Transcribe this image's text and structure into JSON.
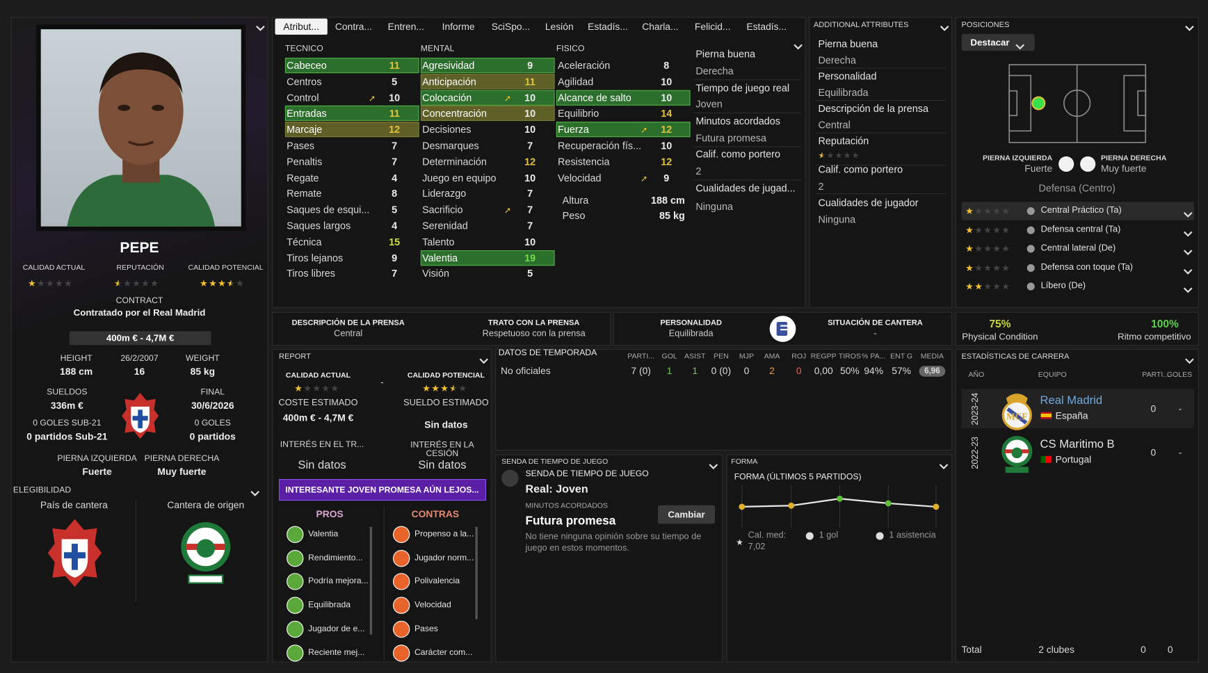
{
  "tabs": [
    "Atribut...",
    "Contra...",
    "Entren...",
    "Informe",
    "SciSpo...",
    "Lesión",
    "Estadís...",
    "Charla...",
    "Felicid...",
    "Estadís..."
  ],
  "profile": {
    "name": "PEPE",
    "ratings": [
      {
        "label": "CALIDAD ACTUAL",
        "stars": 1
      },
      {
        "label": "REPUTACIÓN",
        "stars": 0.5
      },
      {
        "label": "CALIDAD POTENCIAL",
        "stars": 3.5
      }
    ],
    "contract_label": "CONTRACT",
    "contract": "Contratado por el Real Madrid",
    "value": "400m € - 4,7M €",
    "facts": [
      {
        "label": "HEIGHT",
        "value": "188 cm"
      },
      {
        "label": "26/2/2007",
        "value": "16"
      },
      {
        "label": "WEIGHT",
        "value": "85 kg"
      },
      {
        "label": "SUELDOS",
        "value": "336m €"
      },
      {
        "label": "FINAL",
        "value": "30/6/2026"
      },
      {
        "label": "0 GOLES SUB-21",
        "value": "0 partidos Sub-21"
      },
      {
        "label": "0 GOLES",
        "value": "0 partidos"
      },
      {
        "label": "PIERNA IZQUIERDA",
        "value": "Fuerte"
      },
      {
        "label": "PIERNA DERECHA",
        "value": "Muy fuerte"
      }
    ],
    "eligibility": "ELEGIBILIDAD",
    "nation_label": "País de cantera",
    "origin_label": "Cantera de origen"
  },
  "attributes": {
    "columns": [
      {
        "title": "TECNICO",
        "rows": [
          {
            "name": "Cabeceo",
            "value": 11,
            "highlight": "green"
          },
          {
            "name": "Centros",
            "value": 5
          },
          {
            "name": "Control",
            "value": 10,
            "trend": "up"
          },
          {
            "name": "Entradas",
            "value": 11,
            "highlight": "green"
          },
          {
            "name": "Marcaje",
            "value": 12,
            "highlight": "olive"
          },
          {
            "name": "Pases",
            "value": 7
          },
          {
            "name": "Penaltis",
            "value": 7
          },
          {
            "name": "Regate",
            "value": 4
          },
          {
            "name": "Remate",
            "value": 8
          },
          {
            "name": "Saques de esqui...",
            "value": 5
          },
          {
            "name": "Saques largos",
            "value": 4
          },
          {
            "name": "Técnica",
            "value": 15
          },
          {
            "name": "Tiros lejanos",
            "value": 9
          },
          {
            "name": "Tiros libres",
            "value": 7
          }
        ]
      },
      {
        "title": "MENTAL",
        "rows": [
          {
            "name": "Agresividad",
            "value": 9,
            "highlight": "green"
          },
          {
            "name": "Anticipación",
            "value": 11,
            "highlight": "olive"
          },
          {
            "name": "Colocación",
            "value": 10,
            "highlight": "green",
            "trend": "up"
          },
          {
            "name": "Concentración",
            "value": 10,
            "highlight": "olive"
          },
          {
            "name": "Decisiones",
            "value": 10
          },
          {
            "name": "Desmarques",
            "value": 7
          },
          {
            "name": "Determinación",
            "value": 12
          },
          {
            "name": "Juego en equipo",
            "value": 10
          },
          {
            "name": "Liderazgo",
            "value": 7
          },
          {
            "name": "Sacrificio",
            "value": 7,
            "trend": "up"
          },
          {
            "name": "Serenidad",
            "value": 7
          },
          {
            "name": "Talento",
            "value": 10
          },
          {
            "name": "Valentia",
            "value": 19,
            "highlight": "green"
          },
          {
            "name": "Visión",
            "value": 5
          }
        ]
      },
      {
        "title": "FISICO",
        "rows": [
          {
            "name": "Aceleración",
            "value": 8
          },
          {
            "name": "Agilidad",
            "value": 10
          },
          {
            "name": "Alcance de salto",
            "value": 10,
            "highlight": "green"
          },
          {
            "name": "Equilibrio",
            "value": 14
          },
          {
            "name": "Fuerza",
            "value": 12,
            "highlight": "green",
            "trend": "up"
          },
          {
            "name": "Recuperación fís...",
            "value": 10
          },
          {
            "name": "Resistencia",
            "value": 12
          },
          {
            "name": "Velocidad",
            "value": 9,
            "trend": "up"
          }
        ]
      }
    ],
    "physical": [
      {
        "label": "Altura",
        "value": "188 cm"
      },
      {
        "label": "Peso",
        "value": "85 kg"
      }
    ],
    "summary": [
      "Pierna buena",
      "Derecha",
      "Tiempo de juego real",
      "Joven",
      "Minutos acordados",
      "Futura promesa",
      "Calif. como portero",
      "2",
      "Cualidades de jugad...",
      "Ninguna"
    ]
  },
  "additional": {
    "title": "ADDITIONAL ATTRIBUTES",
    "items": [
      {
        "label": "Pierna buena",
        "value": "Derecha"
      },
      {
        "label": "Personalidad",
        "value": "Equilibrada"
      },
      {
        "label": "Descripción de la prensa",
        "value": "Central"
      },
      {
        "label": "Reputación",
        "stars": 0.5
      },
      {
        "label": "Calif. como portero",
        "value": "2"
      },
      {
        "label": "Cualidades de jugador",
        "value": "Ninguna"
      }
    ]
  },
  "positions": {
    "title": "POSICIONES",
    "button": "Destacar",
    "left_foot": {
      "label": "PIERNA IZQUIERDA",
      "value": "Fuerte"
    },
    "right_foot": {
      "label": "PIERNA DERECHA",
      "value": "Muy fuerte"
    },
    "position": "Defensa (Centro)",
    "roles": [
      {
        "name": "Central Práctico (Ta)",
        "stars": 1
      },
      {
        "name": "Defensa central (Ta)",
        "stars": 1
      },
      {
        "name": "Central lateral (De)",
        "stars": 1
      },
      {
        "name": "Defensa con toque (Ta)",
        "stars": 1
      },
      {
        "name": "Líbero (De)",
        "stars": 2
      }
    ]
  },
  "press": [
    {
      "label": "DESCRIPCIÓN DE LA PRENSA",
      "value": "Central"
    },
    {
      "label": "TRATO CON LA PRENSA",
      "value": "Respetuoso con la prensa"
    },
    {
      "label": "PERSONALIDAD",
      "value": "Equilibrada"
    },
    {
      "label": "SITUACIÓN DE CANTERA",
      "value": "-"
    }
  ],
  "condition": [
    {
      "value": "75%",
      "label": "Physical Condition"
    },
    {
      "value": "100%",
      "label": "Ritmo competitivo"
    }
  ],
  "report": {
    "title": "REPORT",
    "current": {
      "label": "CALIDAD ACTUAL",
      "stars": 1
    },
    "separator": "-",
    "potential": {
      "label": "CALIDAD POTENCIAL",
      "stars": 3.5
    },
    "fields": [
      {
        "label": "COSTE ESTIMADO",
        "value": "400m € - 4,7M €"
      },
      {
        "label": "SUELDO ESTIMADO",
        "value": "Sin datos"
      },
      {
        "label": "INTERÉS EN EL TR...",
        "value": "Sin datos"
      },
      {
        "label": "INTERÉS EN LA CESIÓN",
        "value": "Sin datos"
      }
    ],
    "banner": "INTERESANTE JOVEN PROMESA AÚN LEJOS...",
    "pros_title": "PROS",
    "pros": [
      "Valentia",
      "Rendimiento...",
      "Podría mejora...",
      "Equilibrada",
      "Jugador de e...",
      "Reciente mej..."
    ],
    "cons_title": "CONTRAS",
    "cons": [
      "Propenso a la...",
      "Jugador norm...",
      "Polivalencia",
      "Velocidad",
      "Pases",
      "Carácter com..."
    ]
  },
  "season": {
    "title": "DATOS DE TEMPORADA",
    "headers": [
      "PARTI...",
      "GOL",
      "ASIST",
      "PEN",
      "MJP",
      "AMA",
      "ROJ",
      "REGPP",
      "TIROS",
      "% PA...",
      "ENT G",
      "MEDIA"
    ],
    "row_label": "No oficiales",
    "row": [
      "7 (0)",
      "1",
      "1",
      "0 (0)",
      "0",
      "2",
      "0",
      "0,00",
      "50%",
      "94%",
      "57%",
      "6,96"
    ]
  },
  "playing_time": {
    "title": "SENDA DE TIEMPO DE JUEGO",
    "link": "SENDA DE TIEMPO DE JUEGO",
    "status": "Real: Joven",
    "minutes_label": "MINUTOS ACORDADOS",
    "minutes": "Futura promesa",
    "button": "Cambiar",
    "note": "No tiene ninguna opinión sobre su tiempo de juego en estos momentos."
  },
  "form": {
    "title": "FORMA",
    "subtitle": "FORMA (ÚLTIMOS 5 PARTIDOS)",
    "values": [
      6.8,
      6.9,
      7.5,
      7.1,
      6.8
    ],
    "ylim": [
      5,
      9
    ],
    "average_label": "Cal. med:",
    "average": "7,02",
    "goals": "1 gol",
    "assists": "1 asistencia"
  },
  "career": {
    "title": "ESTADÍSTICAS DE CARRERA",
    "headers": [
      "AÑO",
      "EQUIPO",
      "PARTI...",
      "GOLES"
    ],
    "rows": [
      {
        "season": "2023-24",
        "team": "Real Madrid",
        "country": "España",
        "apps": "0",
        "goals": "-"
      },
      {
        "season": "2022-23",
        "team": "CS Maritimo B",
        "country": "Portugal",
        "apps": "0",
        "goals": "-"
      }
    ],
    "total": {
      "label": "Total",
      "clubs": "2 clubes",
      "apps": "0",
      "goals": "0"
    }
  }
}
